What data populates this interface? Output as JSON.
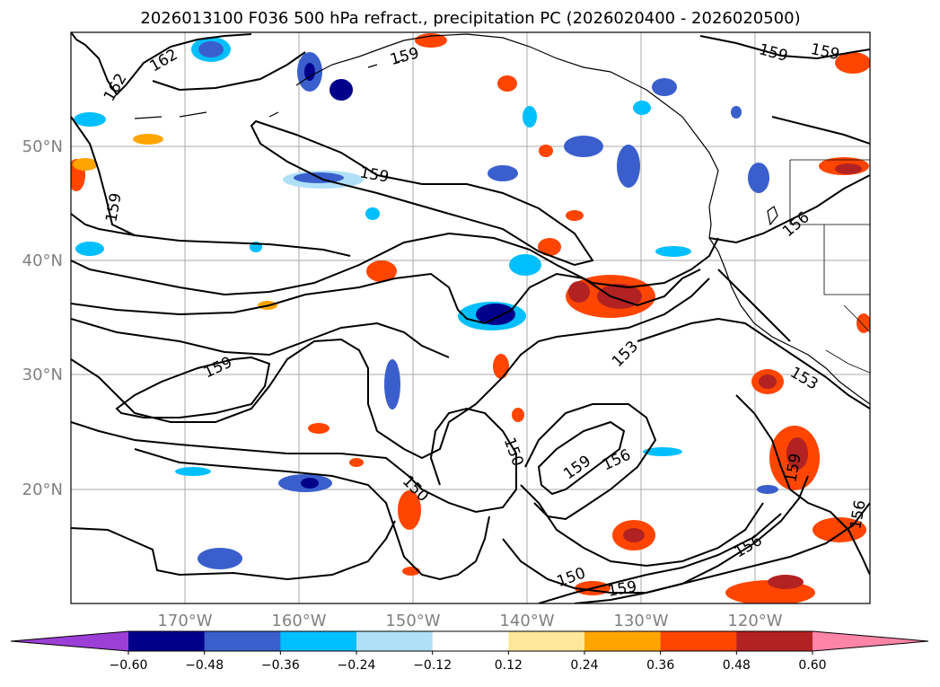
{
  "title": "2026013100 F036 500 hPa refract., precipitation PC (2026020400 - 2026020500)",
  "lon_labels": [
    "170°W",
    "160°W",
    "150°W",
    "140°W",
    "130°W",
    "120°W"
  ],
  "lat_labels": [
    "50°N",
    "40°N",
    "30°N",
    "20°N"
  ],
  "contour_labels": [
    "162",
    "159",
    "159",
    "159",
    "162",
    "159",
    "156",
    "159",
    "153",
    "150",
    "150",
    "159",
    "156",
    "156",
    "153",
    "159",
    "159",
    "156",
    "150",
    "159"
  ],
  "colorbar": {
    "ticks": [
      "−0.60",
      "−0.48",
      "−0.36",
      "−0.24",
      "−0.12",
      "0.12",
      "0.24",
      "0.36",
      "0.48",
      "0.60"
    ],
    "colors": [
      "#9b3fd6",
      "#00008b",
      "#3a5fcd",
      "#00bfff",
      "#b0e0f8",
      "#ffffff",
      "#ffe89a",
      "#ffa500",
      "#ff4500",
      "#b22222",
      "#ff85a8"
    ]
  },
  "colors": {
    "contour": "#000000",
    "grid": "#aaaaaa",
    "coast": "#000000"
  }
}
